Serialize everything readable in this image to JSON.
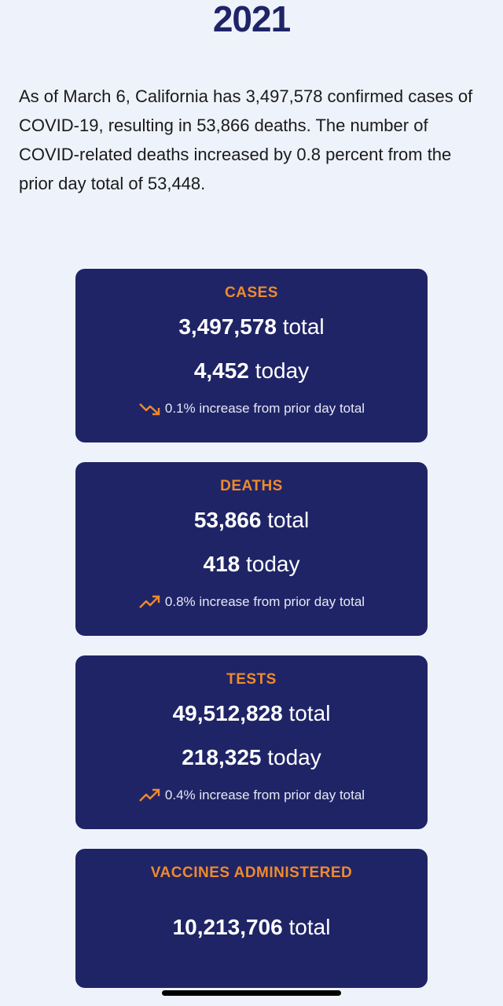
{
  "year": "2021",
  "intro": "As of March 6, California has 3,497,578 confirmed cases of COVID-19, resulting in 53,866 deaths. The number of COVID-related deaths increased by 0.8 percent from the prior day total of 53,448.",
  "colors": {
    "card_bg": "#1f2466",
    "accent": "#f08a2c",
    "page_bg": "#eef2fb"
  },
  "cards": {
    "cases": {
      "title": "CASES",
      "total_value": "3,497,578",
      "total_unit": "total",
      "today_value": "4,452",
      "today_unit": "today",
      "trend_icon": "trend-down-icon",
      "change": "0.1% increase from prior day total"
    },
    "deaths": {
      "title": "DEATHS",
      "total_value": "53,866",
      "total_unit": "total",
      "today_value": "418",
      "today_unit": "today",
      "trend_icon": "trend-up-icon",
      "change": "0.8% increase from prior day total"
    },
    "tests": {
      "title": "TESTS",
      "total_value": "49,512,828",
      "total_unit": "total",
      "today_value": "218,325",
      "today_unit": "today",
      "trend_icon": "trend-up-icon",
      "change": "0.4% increase from prior day total"
    },
    "vaccines": {
      "title": "VACCINES ADMINISTERED",
      "total_value": "10,213,706",
      "total_unit": "total"
    }
  }
}
